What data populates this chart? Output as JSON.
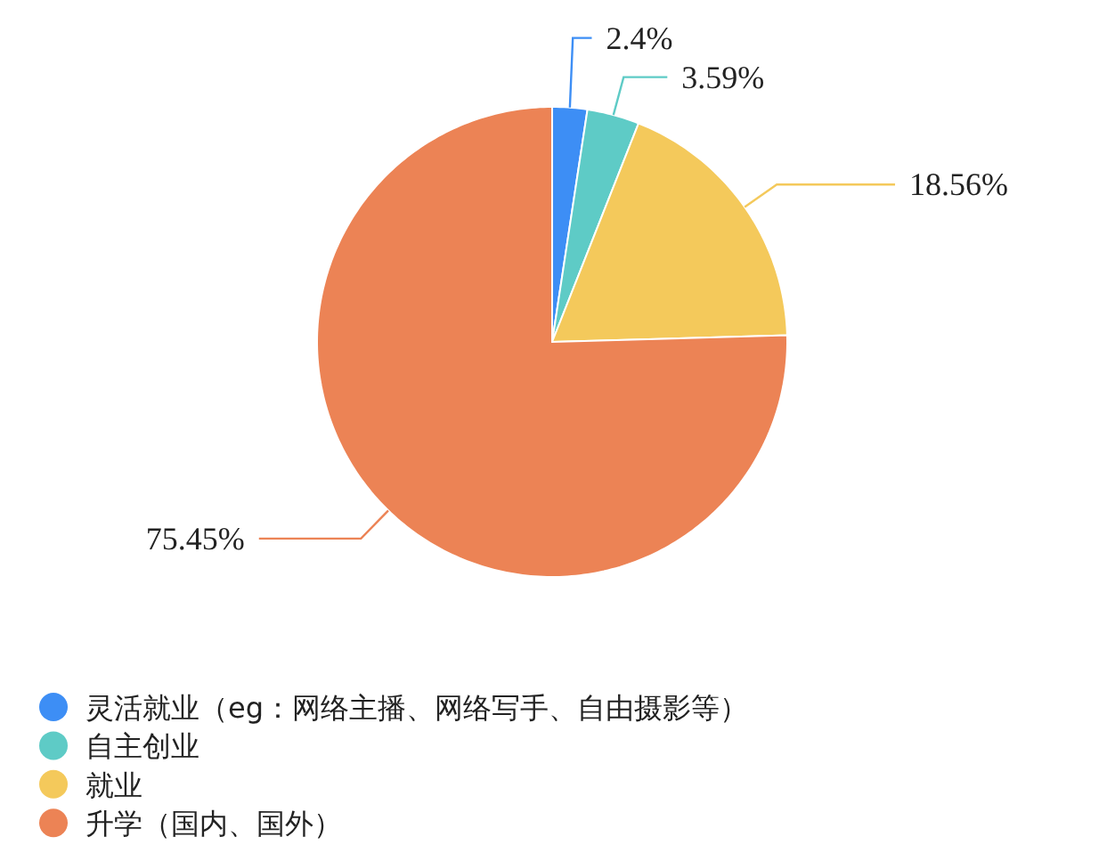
{
  "chart_data": {
    "type": "pie",
    "categories": [
      "灵活就业（eg：网络主播、网络写手、自由摄影等）",
      "自主创业",
      "就业",
      "升学（国内、国外）"
    ],
    "values": [
      2.4,
      3.59,
      18.56,
      75.45
    ],
    "value_labels": [
      "2.4%",
      "3.59%",
      "18.56%",
      "75.45%"
    ],
    "colors": [
      "#3d8ef5",
      "#5ecbc6",
      "#f4c95b",
      "#ec8355"
    ],
    "legend": "bottom left"
  }
}
